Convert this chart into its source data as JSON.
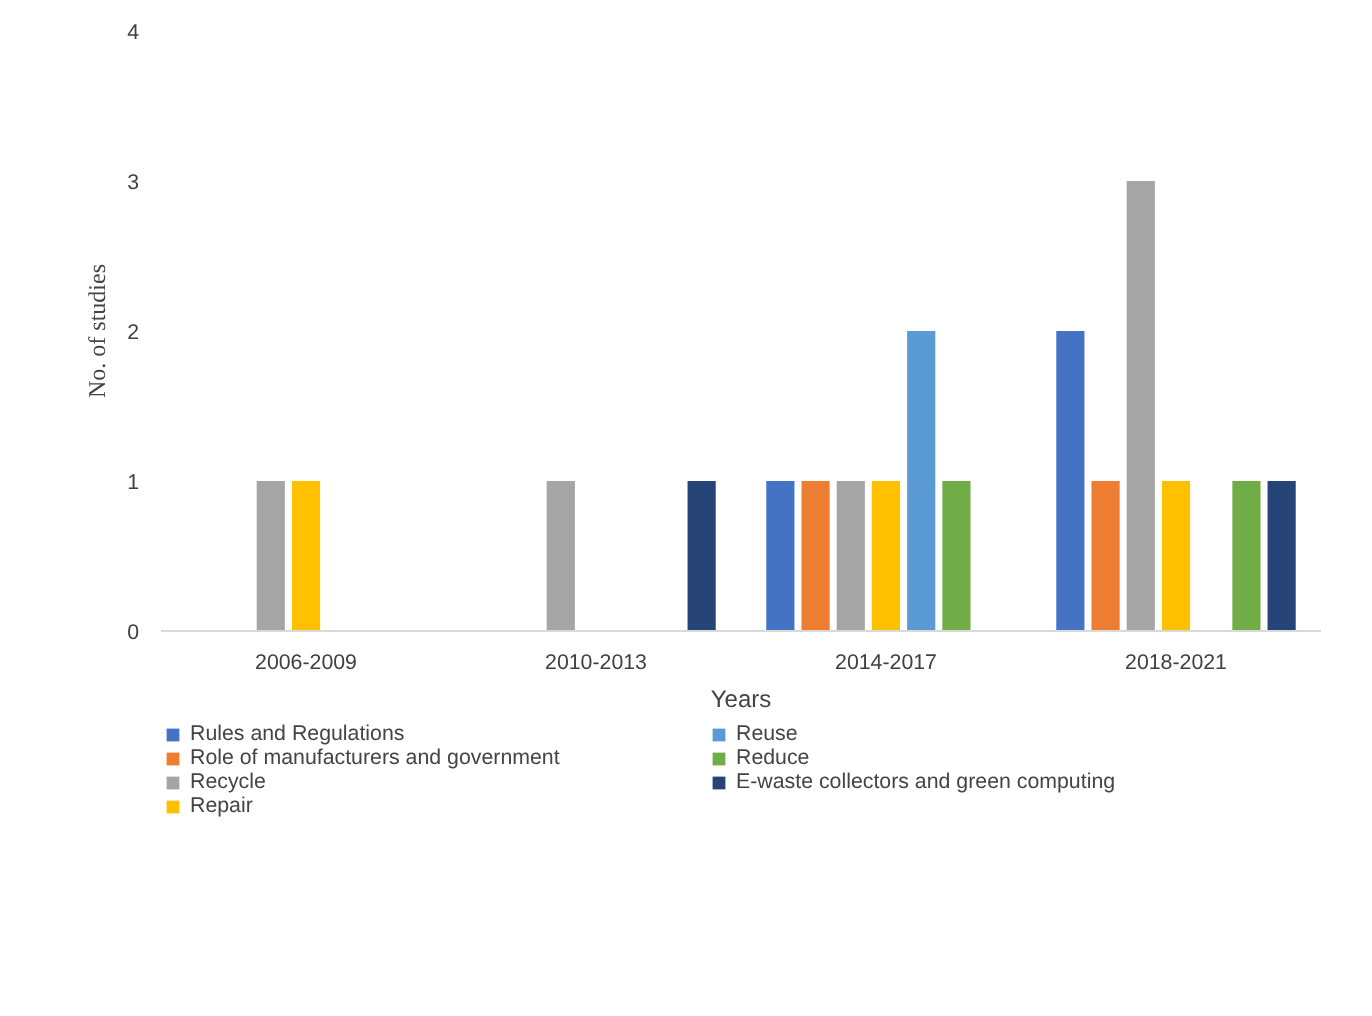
{
  "chart_data": {
    "type": "bar",
    "xlabel": "Years",
    "ylabel": "No. of studies",
    "categories": [
      "2006-2009",
      "2010-2013",
      "2014-2017",
      "2018-2021"
    ],
    "ylim": [
      0,
      4
    ],
    "yticks": [
      0,
      1,
      2,
      3,
      4
    ],
    "grid": false,
    "legend": "bottom",
    "series": [
      {
        "name": "Rules and Regulations",
        "color": "#4472c4",
        "values": [
          0,
          0,
          1,
          2
        ]
      },
      {
        "name": "Role of manufacturers and government",
        "color": "#ed7d31",
        "values": [
          0,
          0,
          1,
          1
        ]
      },
      {
        "name": "Recycle",
        "color": "#a5a5a5",
        "values": [
          1,
          1,
          1,
          3
        ]
      },
      {
        "name": "Repair",
        "color": "#ffc000",
        "values": [
          1,
          0,
          1,
          1
        ]
      },
      {
        "name": "Reuse",
        "color": "#5b9bd5",
        "values": [
          0,
          0,
          2,
          0
        ]
      },
      {
        "name": "Reduce",
        "color": "#70ad47",
        "values": [
          0,
          0,
          1,
          1
        ]
      },
      {
        "name": "E-waste collectors and green computing",
        "color": "#264478",
        "values": [
          0,
          1,
          0,
          1
        ]
      }
    ]
  }
}
